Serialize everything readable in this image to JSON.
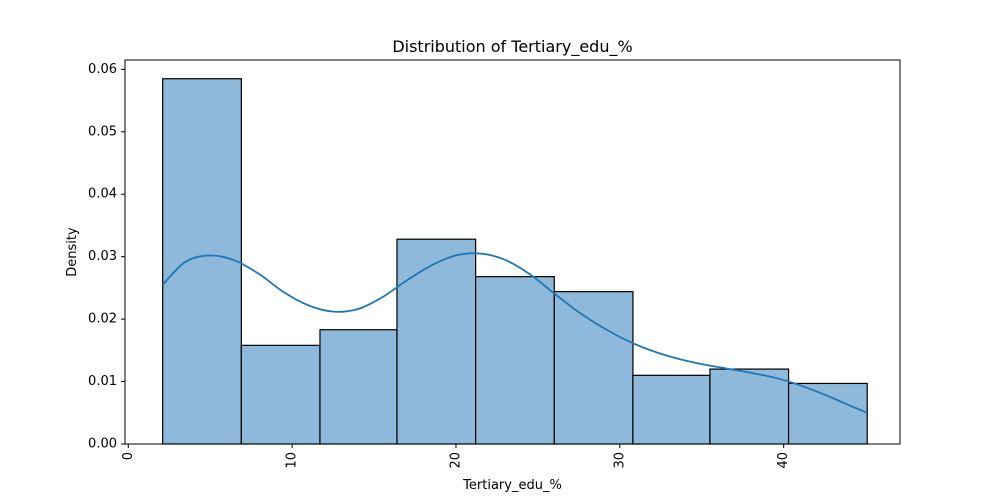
{
  "chart_data": {
    "type": "bar",
    "title": "Distribution of Tertiary_edu_%",
    "xlabel": "Tertiary_edu_%",
    "ylabel": "Density",
    "xlim": [
      -0.2,
      47.1
    ],
    "ylim": [
      0,
      0.0615
    ],
    "x_ticks": [
      0,
      10,
      20,
      30,
      40
    ],
    "y_ticks": [
      0.0,
      0.01,
      0.02,
      0.03,
      0.04,
      0.05,
      0.06
    ],
    "x_tick_labels": [
      "0",
      "10",
      "20",
      "30",
      "40"
    ],
    "y_tick_labels": [
      "0.00",
      "0.01",
      "0.02",
      "0.03",
      "0.04",
      "0.05",
      "0.06"
    ],
    "bin_edges": [
      2.1,
      6.9,
      11.7,
      16.4,
      21.2,
      26.0,
      30.8,
      35.5,
      40.3,
      45.1
    ],
    "values": [
      0.0585,
      0.0158,
      0.0183,
      0.0328,
      0.0268,
      0.0244,
      0.011,
      0.012,
      0.0097
    ],
    "kde": {
      "x": [
        2.1,
        3.5,
        5.0,
        6.5,
        8.0,
        9.5,
        11.0,
        12.5,
        14.0,
        15.5,
        17.0,
        18.5,
        20.0,
        21.5,
        23.0,
        24.5,
        26.0,
        27.5,
        29.0,
        30.5,
        32.0,
        33.5,
        35.0,
        36.5,
        38.0,
        39.5,
        41.0,
        42.5,
        44.0,
        45.1
      ],
      "y": [
        0.0255,
        0.0292,
        0.0302,
        0.0294,
        0.0272,
        0.0243,
        0.0222,
        0.0212,
        0.0216,
        0.0235,
        0.0262,
        0.0286,
        0.0302,
        0.0305,
        0.0295,
        0.0272,
        0.0241,
        0.0211,
        0.0186,
        0.0165,
        0.0149,
        0.0137,
        0.0128,
        0.0121,
        0.0114,
        0.0106,
        0.0094,
        0.0079,
        0.0062,
        0.005
      ]
    },
    "bar_color": "#8fb9da",
    "bar_edge_color": "#000000",
    "line_color": "#1f77b4",
    "grid": false,
    "legend": "none"
  }
}
